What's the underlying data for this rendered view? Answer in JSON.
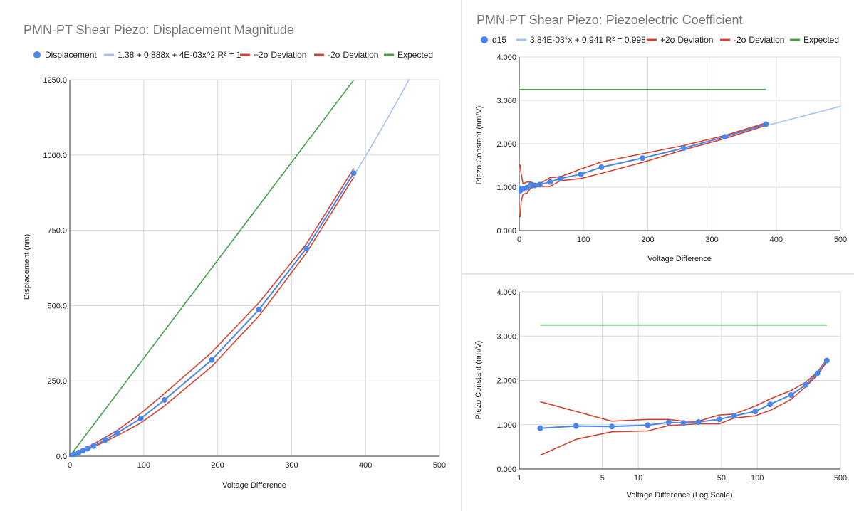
{
  "colors": {
    "measured": "#4a86e8",
    "fit": "#a4c2f4",
    "deviation": "#d44332",
    "expected": "#43a047",
    "title": "#757575"
  },
  "chart_data": [
    {
      "type": "scatter",
      "title": "PMN-PT Shear Piezo: Displacement Magnitude",
      "xlabel": "Voltage Difference",
      "ylabel": "Displacement (nm)",
      "xlim": [
        0,
        500
      ],
      "ylim": [
        0,
        1250
      ],
      "xticks": [
        "0",
        "100",
        "200",
        "300",
        "400",
        "500"
      ],
      "yticks": [
        "0.0",
        "250.0",
        "500.0",
        "750.0",
        "1000.0",
        "1250.0"
      ],
      "legend": [
        "Displacement",
        "1.38 + 0.888x + 4E-03x^2 R² = 1",
        "+2σ Deviation",
        "-2σ Deviation",
        "Expected"
      ],
      "series": [
        {
          "name": "Displacement",
          "kind": "markers-line",
          "x": [
            1.5,
            3,
            6,
            12,
            18,
            24,
            32,
            48,
            64,
            96,
            128,
            192,
            256,
            320,
            384
          ],
          "y": [
            1.4,
            2.9,
            5.8,
            12,
            19,
            25,
            34,
            54,
            77,
            125,
            187,
            320,
            487,
            690,
            940
          ]
        },
        {
          "name": "Fit",
          "kind": "fit",
          "fn": "quad",
          "coef": [
            1.38,
            0.888,
            0.004
          ],
          "xrange": [
            384,
            460
          ]
        },
        {
          "name": "+2σ Deviation",
          "kind": "line",
          "x": [
            0,
            32,
            64,
            96,
            128,
            192,
            256,
            320,
            384
          ],
          "y": [
            2,
            40,
            85,
            142,
            208,
            345,
            510,
            705,
            955
          ]
        },
        {
          "name": "-2σ Deviation",
          "kind": "line",
          "x": [
            0,
            32,
            64,
            96,
            128,
            192,
            256,
            320,
            384
          ],
          "y": [
            0,
            30,
            68,
            110,
            167,
            298,
            466,
            675,
            926
          ]
        },
        {
          "name": "Expected",
          "kind": "line",
          "x": [
            0,
            384
          ],
          "y": [
            0,
            1249
          ]
        }
      ]
    },
    {
      "type": "scatter",
      "title": "PMN-PT Shear Piezo: Piezoelectric Coefficient",
      "xlabel": "Voltage Difference",
      "ylabel": "Piezo Constant (nm/V)",
      "xlim": [
        0,
        500
      ],
      "ylim": [
        0,
        4
      ],
      "xticks": [
        "0",
        "100",
        "200",
        "300",
        "400",
        "500"
      ],
      "yticks": [
        "0.000",
        "1.000",
        "2.000",
        "3.000",
        "4.000"
      ],
      "legend": [
        "d15",
        "3.84E-03*x + 0.941 R² = 0.998",
        "+2σ Deviation",
        "-2σ Deviation",
        "Expected"
      ],
      "series": [
        {
          "name": "d15",
          "kind": "markers-line",
          "x": [
            1.5,
            3,
            6,
            12,
            18,
            24,
            32,
            48,
            64,
            96,
            128,
            192,
            256,
            320,
            384
          ],
          "y": [
            0.92,
            0.97,
            0.96,
            0.99,
            1.05,
            1.04,
            1.06,
            1.12,
            1.2,
            1.3,
            1.46,
            1.67,
            1.9,
            2.16,
            2.45
          ]
        },
        {
          "name": "Fit",
          "kind": "fit",
          "fn": "lin",
          "coef": [
            0.941,
            0.00384
          ],
          "xrange": [
            384,
            500
          ]
        },
        {
          "name": "+2σ Deviation",
          "kind": "line",
          "x": [
            1.5,
            3,
            6,
            12,
            18,
            24,
            32,
            48,
            64,
            96,
            128,
            192,
            256,
            320,
            384
          ],
          "y": [
            1.52,
            1.3,
            1.08,
            1.12,
            1.12,
            1.08,
            1.08,
            1.22,
            1.24,
            1.42,
            1.58,
            1.77,
            1.96,
            2.19,
            2.48
          ]
        },
        {
          "name": "-2σ Deviation",
          "kind": "line",
          "x": [
            1.5,
            3,
            6,
            12,
            18,
            24,
            32,
            48,
            64,
            96,
            128,
            192,
            256,
            320,
            384
          ],
          "y": [
            0.31,
            0.67,
            0.84,
            0.86,
            0.98,
            1.0,
            1.02,
            1.02,
            1.15,
            1.2,
            1.32,
            1.57,
            1.86,
            2.12,
            2.42
          ]
        },
        {
          "name": "Expected",
          "kind": "line",
          "x": [
            0,
            384
          ],
          "y": [
            3.25,
            3.25
          ]
        }
      ]
    },
    {
      "type": "scatter",
      "title": "",
      "xlabel": "Voltage Difference (Log Scale)",
      "ylabel": "Piezo Constant (nm/V)",
      "xscale": "log",
      "xlim": [
        1,
        500
      ],
      "ylim": [
        0,
        4
      ],
      "xticks": [
        "1",
        "5",
        "10",
        "50",
        "100",
        "500"
      ],
      "yticks": [
        "0.000",
        "1.000",
        "2.000",
        "3.000",
        "4.000"
      ],
      "series": [
        {
          "name": "d15",
          "kind": "markers-line",
          "x": [
            1.5,
            3,
            6,
            12,
            18,
            24,
            32,
            48,
            64,
            96,
            128,
            192,
            256,
            320,
            384
          ],
          "y": [
            0.92,
            0.97,
            0.96,
            0.99,
            1.05,
            1.04,
            1.06,
            1.12,
            1.2,
            1.3,
            1.46,
            1.67,
            1.9,
            2.16,
            2.45
          ]
        },
        {
          "name": "+2σ Deviation",
          "kind": "line",
          "x": [
            1.5,
            3,
            6,
            12,
            18,
            24,
            32,
            48,
            64,
            96,
            128,
            192,
            256,
            320,
            384
          ],
          "y": [
            1.52,
            1.3,
            1.08,
            1.12,
            1.12,
            1.08,
            1.08,
            1.22,
            1.24,
            1.42,
            1.58,
            1.77,
            1.96,
            2.19,
            2.48
          ]
        },
        {
          "name": "-2σ Deviation",
          "kind": "line",
          "x": [
            1.5,
            3,
            6,
            12,
            18,
            24,
            32,
            48,
            64,
            96,
            128,
            192,
            256,
            320,
            384
          ],
          "y": [
            0.31,
            0.67,
            0.84,
            0.86,
            0.98,
            1.0,
            1.02,
            1.02,
            1.15,
            1.2,
            1.32,
            1.57,
            1.86,
            2.12,
            2.42
          ]
        },
        {
          "name": "Expected",
          "kind": "line",
          "x": [
            1.5,
            384
          ],
          "y": [
            3.25,
            3.25
          ]
        }
      ]
    }
  ]
}
